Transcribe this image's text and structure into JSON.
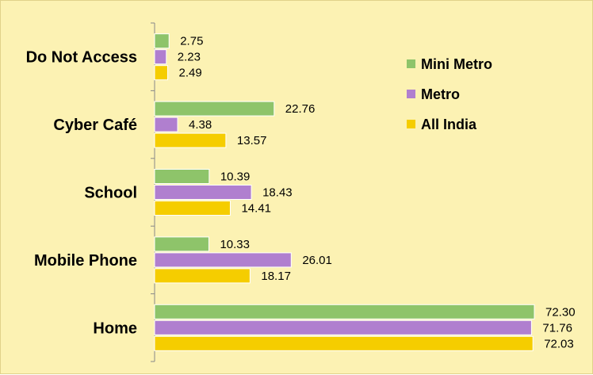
{
  "chart_data": {
    "type": "bar",
    "orientation": "horizontal",
    "categories": [
      "Do Not Access",
      "Cyber Café",
      "School",
      "Mobile Phone",
      "Home"
    ],
    "series": [
      {
        "name": "Mini Metro",
        "color": "#8ec46a",
        "values": [
          2.75,
          22.76,
          10.39,
          10.33,
          72.3
        ],
        "labels": [
          "2.75",
          "22.76",
          "10.39",
          "10.33",
          "72.30"
        ]
      },
      {
        "name": "Metro",
        "color": "#b07fcf",
        "values": [
          2.23,
          4.38,
          18.43,
          26.01,
          71.76
        ],
        "labels": [
          "2.23",
          "4.38",
          "18.43",
          "26.01",
          "71.76"
        ]
      },
      {
        "name": "All India",
        "color": "#f5cd00",
        "values": [
          2.49,
          13.57,
          14.41,
          18.17,
          72.03
        ],
        "labels": [
          "2.49",
          "13.57",
          "14.41",
          "18.17",
          "72.03"
        ]
      }
    ],
    "xlim": [
      0,
      80
    ],
    "grid": false,
    "legend_position": "top-right"
  }
}
